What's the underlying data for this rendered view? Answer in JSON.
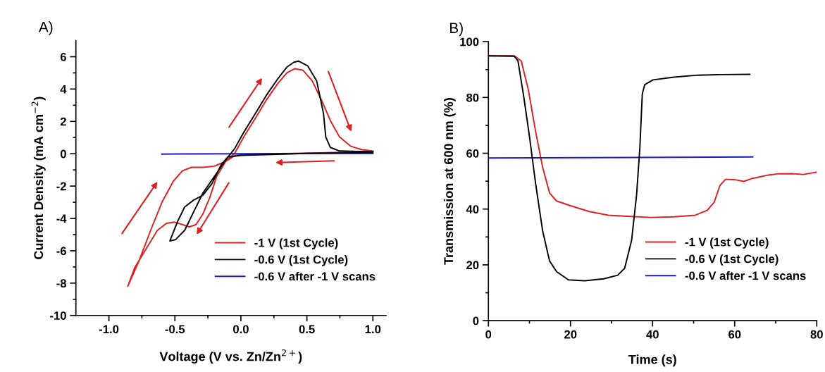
{
  "chart_data": [
    {
      "type": "line",
      "title": "A)",
      "xlabel": "Voltage (V vs. Zn/Zn$^{2+}$)",
      "ylabel": "Current Density (mA cm$^{−2}$)",
      "xlim": [
        -1.25,
        1.1
      ],
      "ylim": [
        -10,
        7
      ],
      "xticks": [
        {
          "value": -1.0,
          "label": "-1.0"
        },
        {
          "value": -0.75,
          "label": null
        },
        -0.5,
        {
          "value": -0.25,
          "label": null
        },
        {
          "value": 0.0,
          "label": "0.0"
        },
        {
          "value": 0.25,
          "label": null
        },
        0.5,
        {
          "value": 0.75,
          "label": null
        },
        {
          "value": 1.0,
          "label": "1.0"
        }
      ],
      "yticks": [
        -10,
        {
          "value": -9,
          "label": null
        },
        -8,
        {
          "value": -7,
          "label": null
        },
        -6,
        {
          "value": -5,
          "label": null
        },
        -4,
        {
          "value": -3,
          "label": null
        },
        -2,
        {
          "value": -1,
          "label": null
        },
        0,
        {
          "value": 1,
          "label": null
        },
        2,
        {
          "value": 3,
          "label": null
        },
        4,
        {
          "value": 5,
          "label": null
        },
        6
      ],
      "legend": "bottom right",
      "grid": false,
      "marker": "none",
      "line_style": "solid",
      "series": [
        {
          "name": "-1 V (1st Cycle)",
          "color": "#e02020",
          "x": [
            1.0,
            0.5,
            0.0,
            -0.047,
            -0.116,
            -0.184,
            -0.236,
            -0.288,
            -0.34,
            -0.39,
            -0.443,
            -0.503,
            -0.564,
            -0.633,
            -0.719,
            -0.805,
            -0.857,
            -0.771,
            -0.684,
            -0.598,
            -0.512,
            -0.443,
            -0.374,
            -0.288,
            -0.202,
            -0.116,
            -0.047,
            0.022,
            0.109,
            0.195,
            0.281,
            0.35,
            0.41,
            0.471,
            0.54,
            0.609,
            0.678,
            0.747,
            0.833,
            0.919,
            1.0
          ],
          "values": [
            0.14,
            0.03,
            -0.05,
            -0.12,
            -0.48,
            -1.42,
            -2.71,
            -3.73,
            -4.38,
            -4.52,
            -4.38,
            -4.23,
            -4.3,
            -4.74,
            -5.89,
            -7.05,
            -8.2,
            -6.61,
            -4.74,
            -3.0,
            -1.7,
            -1.05,
            -0.84,
            -0.84,
            -0.77,
            -0.48,
            0.03,
            1.04,
            2.19,
            3.35,
            4.36,
            5.01,
            5.26,
            5.16,
            4.51,
            3.35,
            2.05,
            1.04,
            0.46,
            0.25,
            0.17
          ]
        },
        {
          "name": "-0.6 V (1st Cycle)",
          "color": "#000000",
          "x": [
            1.0,
            0.5,
            0.0,
            -0.05,
            -0.1,
            -0.15,
            -0.219,
            -0.288,
            -0.357,
            -0.426,
            -0.478,
            -0.538,
            -0.495,
            -0.426,
            -0.357,
            -0.288,
            -0.202,
            -0.116,
            -0.047,
            0.022,
            0.109,
            0.195,
            0.281,
            0.35,
            0.402,
            0.436,
            0.505,
            0.574,
            0.626,
            0.643,
            0.678,
            0.747,
            1.0
          ],
          "values": [
            0.07,
            0.02,
            -0.1,
            -0.15,
            -0.2,
            -0.69,
            -1.85,
            -2.57,
            -2.86,
            -3.29,
            -4.16,
            -5.39,
            -5.31,
            -4.74,
            -3.58,
            -2.43,
            -1.42,
            -0.4,
            0.32,
            1.33,
            2.48,
            3.64,
            4.65,
            5.37,
            5.66,
            5.73,
            5.44,
            4.51,
            2.48,
            1.04,
            0.39,
            0.17,
            0.12
          ]
        },
        {
          "name": "-0.6 V after -1 V scans",
          "color": "#1a1ac8",
          "x": [
            -0.6,
            0.0,
            0.5,
            1.0
          ],
          "values": [
            -0.02,
            0.0,
            0.02,
            0.02
          ]
        }
      ]
    },
    {
      "type": "line",
      "title": "B)",
      "xlabel": "Time (s)",
      "ylabel": "Transmission at 600 nm (%)",
      "xlim": [
        0,
        80
      ],
      "ylim": [
        0,
        100
      ],
      "xticks": [
        0,
        {
          "value": 10,
          "label": null
        },
        20,
        {
          "value": 30,
          "label": null
        },
        40,
        {
          "value": 50,
          "label": null
        },
        60,
        {
          "value": 70,
          "label": null
        },
        80
      ],
      "yticks": [
        0,
        {
          "value": 10,
          "label": null
        },
        20,
        {
          "value": 30,
          "label": null
        },
        40,
        {
          "value": 50,
          "label": null
        },
        60,
        {
          "value": 70,
          "label": null
        },
        80,
        {
          "value": 90,
          "label": null
        },
        100
      ],
      "legend": "bottom right",
      "grid": false,
      "marker": "none",
      "line_style": "solid",
      "series": [
        {
          "name": "-1 V (1st Cycle)",
          "color": "#e02020",
          "x": [
            0,
            6.3,
            8.0,
            9.7,
            11.5,
            13.2,
            14.9,
            16.6,
            20.0,
            24.6,
            29.2,
            33.8,
            39.5,
            45.2,
            50.4,
            53.3,
            55.0,
            56.4,
            57.8,
            60.2,
            62.2,
            64.1,
            66.4,
            68.2,
            70.4,
            73.9,
            76.7,
            80.0
          ],
          "values": [
            94.9,
            94.9,
            93.1,
            83.0,
            67.8,
            55.1,
            45.8,
            42.9,
            41.2,
            39.1,
            37.8,
            37.4,
            37.0,
            37.2,
            37.8,
            39.5,
            42.4,
            48.4,
            50.7,
            50.5,
            49.9,
            50.9,
            51.6,
            52.2,
            52.6,
            52.7,
            52.4,
            53.2
          ]
        },
        {
          "name": "-0.6 V (1st Cycle)",
          "color": "#000000",
          "x": [
            0,
            6.3,
            7.2,
            8.6,
            10.0,
            11.5,
            13.2,
            14.9,
            16.6,
            19.5,
            23.5,
            28.1,
            31.5,
            33.2,
            34.9,
            36.1,
            36.9,
            37.5,
            38.1,
            40.1,
            45.2,
            51.0,
            56.7,
            63.7
          ],
          "values": [
            94.9,
            94.8,
            93.1,
            80.4,
            66.1,
            49.2,
            32.3,
            21.4,
            17.6,
            14.6,
            14.3,
            15.0,
            16.3,
            18.8,
            28.9,
            45.0,
            61.9,
            81.3,
            84.6,
            86.3,
            87.3,
            88.0,
            88.2,
            88.3
          ]
        },
        {
          "name": "-0.6 V after -1 V scans",
          "color": "#1a1ac8",
          "x": [
            0,
            36.1,
            64.4
          ],
          "values": [
            58.3,
            58.5,
            58.7
          ]
        }
      ]
    }
  ]
}
